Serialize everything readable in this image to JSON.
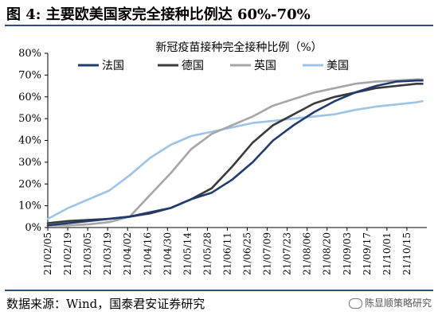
{
  "figure_title": "图 4:  主要欧美国家完全接种比例达 60%-70%",
  "source_note": "数据来源：Wind，国泰君安证券研究",
  "watermark": "陈显顺策略研究",
  "chart_data": {
    "type": "line",
    "title": "新冠疫苗接种完全接种比例（%）",
    "ylim": [
      0,
      80
    ],
    "ytick_values": [
      0,
      10,
      20,
      30,
      40,
      50,
      60,
      70,
      80
    ],
    "ytick_labels": [
      "0%",
      "10%",
      "20%",
      "30%",
      "40%",
      "50%",
      "60%",
      "70%",
      "80%"
    ],
    "x_labels": [
      "21/02/05",
      "21/02/19",
      "21/03/05",
      "21/03/19",
      "21/04/02",
      "21/04/16",
      "21/04/30",
      "21/05/14",
      "21/05/28",
      "21/06/11",
      "21/06/25",
      "21/07/09",
      "21/07/23",
      "21/08/06",
      "21/08/20",
      "21/09/03",
      "21/09/17",
      "21/10/01",
      "21/10/15"
    ],
    "x_range": [
      0,
      259
    ],
    "x": [
      0,
      14,
      28,
      42,
      56,
      70,
      84,
      98,
      112,
      126,
      140,
      154,
      168,
      182,
      196,
      210,
      224,
      238,
      252,
      256
    ],
    "legend_position": "top-left",
    "grid": false,
    "series": [
      {
        "name": "法国",
        "color": "#1f3b6f",
        "values": [
          1,
          2,
          3,
          4,
          5,
          7,
          9,
          13,
          16,
          22,
          30,
          40,
          47,
          53,
          58,
          62,
          65,
          67,
          67.5,
          67.5
        ]
      },
      {
        "name": "德国",
        "color": "#3a3a3a",
        "values": [
          2,
          3,
          3.5,
          4,
          5,
          6.5,
          9,
          13,
          18,
          28,
          39,
          47,
          52,
          57,
          60,
          62,
          64,
          65,
          66,
          66
        ]
      },
      {
        "name": "英国",
        "color": "#a6a6a6",
        "values": [
          1,
          1,
          1.5,
          2.5,
          5,
          15,
          25,
          36,
          43,
          47,
          51,
          56,
          59,
          62,
          64,
          66,
          67,
          67.5,
          68,
          68
        ]
      },
      {
        "name": "美国",
        "color": "#9dc3e6",
        "values": [
          4,
          9,
          13,
          17,
          24,
          32,
          38,
          42,
          44,
          46,
          48,
          49,
          50,
          51,
          52,
          54,
          55.5,
          56.5,
          57.5,
          58
        ]
      }
    ]
  }
}
